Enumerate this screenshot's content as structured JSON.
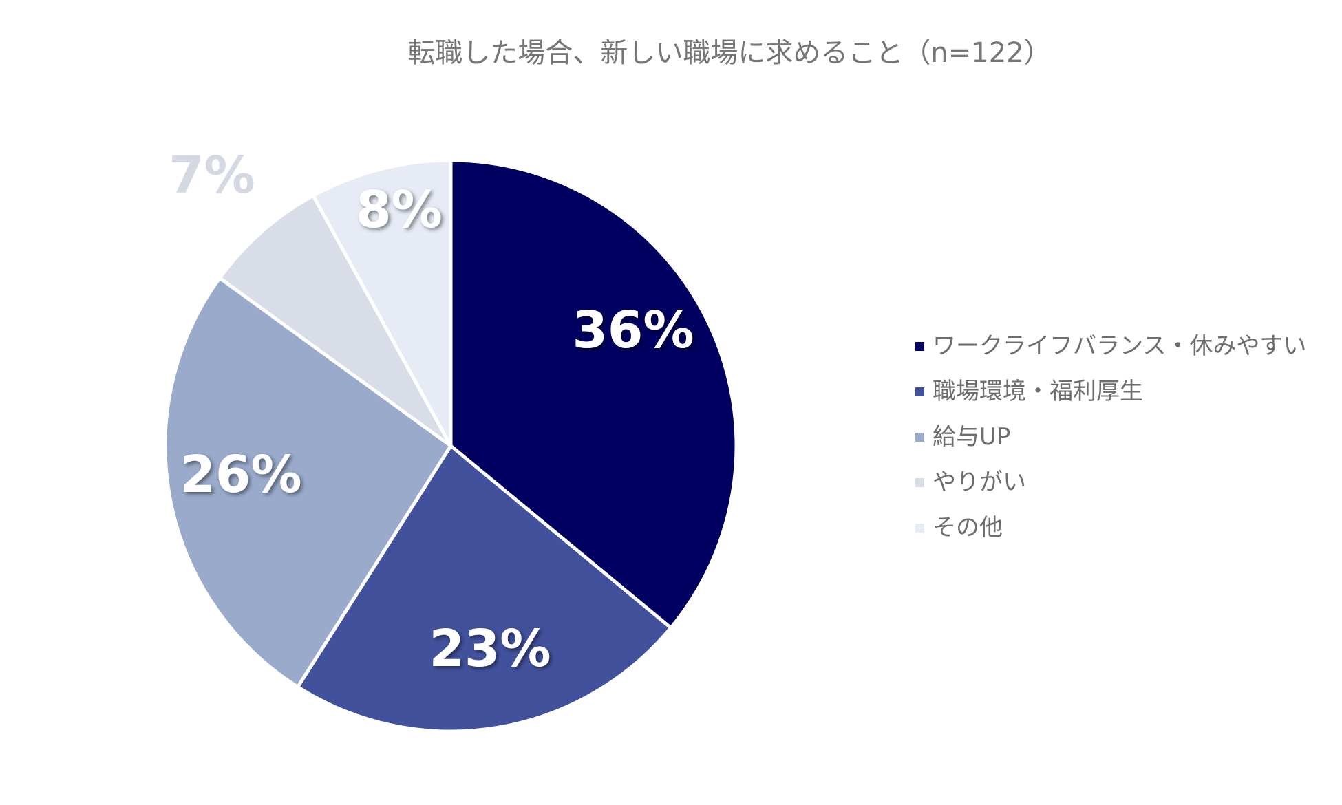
{
  "chart_data": {
    "type": "pie",
    "title": "転職した場合、新しい職場に求めること（n=122）",
    "categories": [
      "ワークライフバランス・休みやすい",
      "職場環境・福利厚生",
      "給与UP",
      "やりがい",
      "その他"
    ],
    "values": [
      36,
      23,
      26,
      7,
      8
    ],
    "labels": [
      "36%",
      "23%",
      "26%",
      "7%",
      "8%"
    ],
    "colors": [
      "#000060",
      "#41519c",
      "#99aacb",
      "#d8dde8",
      "#e6ebf6"
    ],
    "label_colors": [
      "#ffffff",
      "#ffffff",
      "#ffffff",
      "#d4d8e2",
      "#ffffff"
    ],
    "start": "12 o'clock",
    "direction": "clockwise",
    "legend_position": "right"
  }
}
